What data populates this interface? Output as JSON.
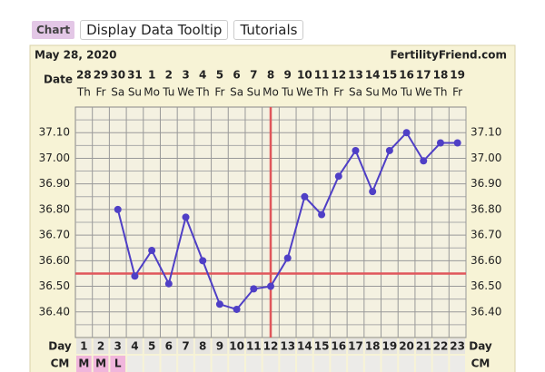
{
  "toolbar": {
    "tag": "Chart",
    "buttons": [
      "Display Data Tooltip",
      "Tutorials"
    ]
  },
  "chart_data": {
    "type": "line",
    "title": "May 28, 2020",
    "site": "FertilityFriend.com",
    "date_label": "Date",
    "day_label": "Day",
    "cm_label": "CM",
    "dates": [
      "28",
      "29",
      "30",
      "31",
      "1",
      "2",
      "3",
      "4",
      "5",
      "6",
      "7",
      "8",
      "9",
      "10",
      "11",
      "12",
      "13",
      "14",
      "15",
      "16",
      "17",
      "18",
      "19"
    ],
    "weekdays": [
      "Th",
      "Fr",
      "Sa",
      "Su",
      "Mo",
      "Tu",
      "We",
      "Th",
      "Fr",
      "Sa",
      "Su",
      "Mo",
      "Tu",
      "We",
      "Th",
      "Fr",
      "Sa",
      "Su",
      "Mo",
      "Tu",
      "We",
      "Th",
      "Fr"
    ],
    "x": [
      1,
      2,
      3,
      4,
      5,
      6,
      7,
      8,
      9,
      10,
      11,
      12,
      13,
      14,
      15,
      16,
      17,
      18,
      19,
      20,
      21,
      22,
      23
    ],
    "xlim": [
      0.5,
      23.5
    ],
    "values": [
      null,
      null,
      36.8,
      36.54,
      36.64,
      36.51,
      36.77,
      36.6,
      36.43,
      36.41,
      36.49,
      36.5,
      36.61,
      36.85,
      36.78,
      36.93,
      37.03,
      36.87,
      37.03,
      37.1,
      36.99,
      37.06,
      37.06
    ],
    "color": "#4f3fc6",
    "cm": [
      "M",
      "M",
      "L",
      null,
      null,
      null,
      null,
      null,
      null,
      null,
      null,
      null,
      null,
      null,
      null,
      null,
      null,
      null,
      null,
      null,
      null,
      null,
      null
    ],
    "coverline": 36.55,
    "coverline_color": "#e0565b",
    "ovulation_day": 12,
    "ylim": [
      36.3,
      37.2
    ],
    "yticks": [
      {
        "value": 36.4,
        "label": "36.40"
      },
      {
        "value": 36.5,
        "label": "36.50"
      },
      {
        "value": 36.6,
        "label": "36.60"
      },
      {
        "value": 36.7,
        "label": "36.70"
      },
      {
        "value": 36.8,
        "label": "36.80"
      },
      {
        "value": 36.9,
        "label": "36.90"
      },
      {
        "value": 37.0,
        "label": "37.00"
      },
      {
        "value": 37.1,
        "label": "37.10"
      }
    ],
    "minor_yticks": [
      36.35,
      36.45,
      36.55,
      36.65,
      36.75,
      36.85,
      36.95,
      37.05,
      37.15
    ],
    "grid": true
  }
}
